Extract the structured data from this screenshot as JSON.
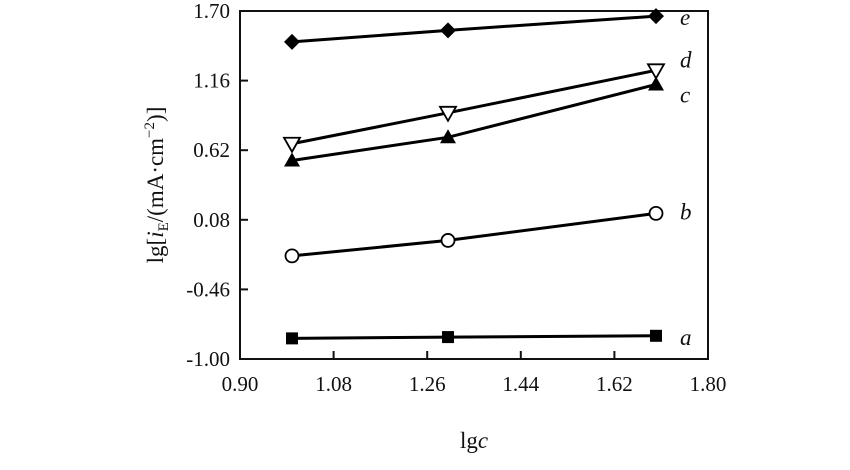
{
  "chart_data": {
    "type": "line",
    "xlabel_prefix": "lg",
    "xlabel_var": "c",
    "ylabel_prefix": "lg[",
    "ylabel_var": "i",
    "ylabel_sub": "E",
    "ylabel_suffix": "/(mA·cm",
    "ylabel_sup": "−2",
    "ylabel_end": ")]",
    "xlim": [
      0.9,
      1.8
    ],
    "ylim": [
      -1.0,
      1.7
    ],
    "xticks": [
      0.9,
      1.08,
      1.26,
      1.44,
      1.62,
      1.8
    ],
    "xtick_labels": [
      "0.90",
      "1.08",
      "1.26",
      "1.44",
      "1.62",
      "1.80"
    ],
    "yticks": [
      -1.0,
      -0.46,
      0.08,
      0.62,
      1.16,
      1.7
    ],
    "ytick_labels": [
      "-1.00",
      "-0.46",
      "0.08",
      "0.62",
      "1.16",
      "1.70"
    ],
    "grid": false,
    "series": [
      {
        "name": "a",
        "marker": "filled-square",
        "x": [
          1.0,
          1.3,
          1.7
        ],
        "y": [
          -0.84,
          -0.83,
          -0.82
        ]
      },
      {
        "name": "b",
        "marker": "open-circle",
        "x": [
          1.0,
          1.3,
          1.7
        ],
        "y": [
          -0.2,
          -0.08,
          0.13
        ]
      },
      {
        "name": "c",
        "marker": "filled-triangle-up",
        "x": [
          1.0,
          1.3,
          1.7
        ],
        "y": [
          0.54,
          0.72,
          1.13
        ]
      },
      {
        "name": "d",
        "marker": "open-triangle-down",
        "x": [
          1.0,
          1.3,
          1.7
        ],
        "y": [
          0.67,
          0.91,
          1.24
        ]
      },
      {
        "name": "e",
        "marker": "filled-diamond",
        "x": [
          1.0,
          1.3,
          1.7
        ],
        "y": [
          1.46,
          1.55,
          1.66
        ]
      }
    ]
  }
}
